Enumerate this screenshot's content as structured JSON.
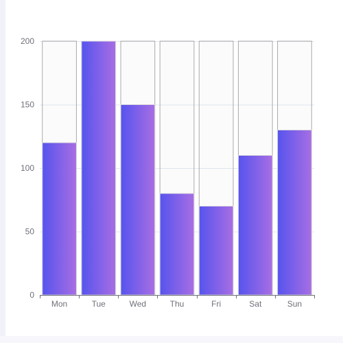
{
  "chart_data": {
    "type": "bar",
    "categories": [
      "Mon",
      "Tue",
      "Wed",
      "Thu",
      "Fri",
      "Sat",
      "Sun"
    ],
    "series": [
      {
        "values": [
          120,
          200,
          150,
          80,
          70,
          110,
          130
        ]
      }
    ],
    "title": "",
    "xlabel": "",
    "ylabel": "",
    "ylim": [
      0,
      200
    ],
    "yticks": [
      0,
      50,
      100,
      150,
      200
    ],
    "grid": true,
    "legend": "none",
    "bar_background": true,
    "colors": {
      "gradient_start": "#5654ee",
      "gradient_end": "#a86ee3",
      "bar_border": "#dcdcdc",
      "background_bar_border": "#a9a9a9",
      "gridline": "#e0e6f1",
      "axis": "#6e7079"
    }
  }
}
